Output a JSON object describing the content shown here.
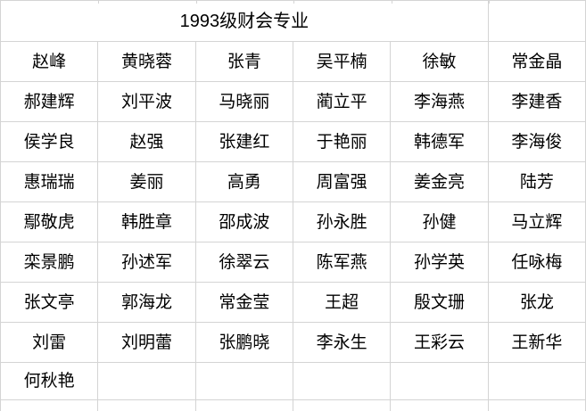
{
  "sheet": {
    "title": "1993级财会专业",
    "columns": 6,
    "rows": [
      [
        "赵峰",
        "黄晓蓉",
        "张青",
        "吴平楠",
        "徐敏",
        "常金晶"
      ],
      [
        "郝建辉",
        "刘平波",
        "马晓丽",
        "蔺立平",
        "李海燕",
        "李建香"
      ],
      [
        "侯学良",
        "赵强",
        "张建红",
        "于艳丽",
        "韩德军",
        "李海俊"
      ],
      [
        "惠瑞瑞",
        "姜丽",
        "高勇",
        "周富强",
        "姜金亮",
        "陆芳"
      ],
      [
        "鄢敬虎",
        "韩胜章",
        "邵成波",
        "孙永胜",
        "孙健",
        "马立辉"
      ],
      [
        "栾景鹏",
        "孙述军",
        "徐翠云",
        "陈军燕",
        "孙学英",
        "任咏梅"
      ],
      [
        "张文亭",
        "郭海龙",
        "常金莹",
        "王超",
        "殷文珊",
        "张龙"
      ],
      [
        "刘雷",
        "刘明蕾",
        "张鹏晓",
        "李永生",
        "王彩云",
        "王新华"
      ],
      [
        "何秋艳",
        "",
        "",
        "",
        "",
        ""
      ]
    ]
  },
  "colors": {
    "gridline": "#d4d4d4",
    "background": "#ffffff",
    "text": "#000000"
  }
}
